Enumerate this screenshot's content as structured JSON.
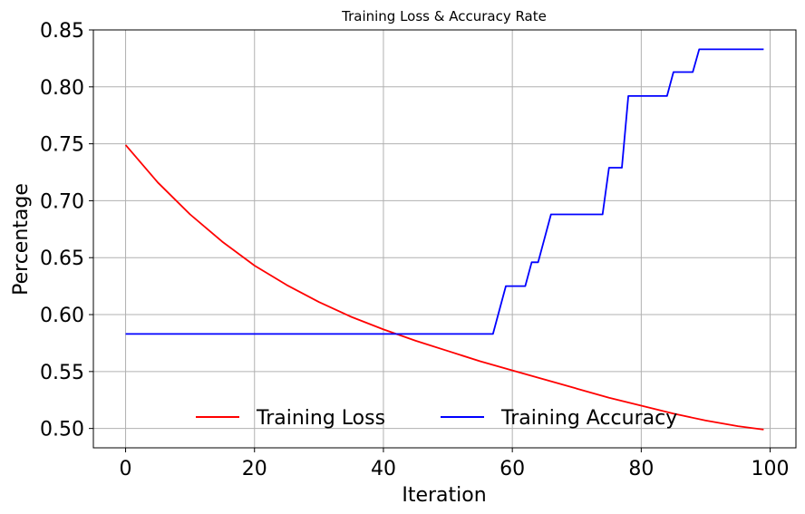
{
  "chart_data": {
    "type": "line",
    "title": "Training Loss & Accuracy Rate",
    "xlabel": "Iteration",
    "ylabel": "Percentage",
    "xlim": [
      -5,
      104
    ],
    "ylim": [
      0.483,
      0.85
    ],
    "xticks": [
      0,
      20,
      40,
      60,
      80,
      100
    ],
    "yticks": [
      0.5,
      0.55,
      0.6,
      0.65,
      0.7,
      0.75,
      0.8,
      0.85
    ],
    "grid": true,
    "legend": {
      "placement": "lower-center",
      "columns": 2
    },
    "series": [
      {
        "name": "Training Loss",
        "color": "#ff0000",
        "x": [
          0,
          5,
          10,
          15,
          20,
          25,
          30,
          35,
          40,
          45,
          50,
          55,
          60,
          65,
          70,
          75,
          80,
          85,
          90,
          95,
          99
        ],
        "y": [
          0.749,
          0.716,
          0.688,
          0.664,
          0.643,
          0.626,
          0.611,
          0.598,
          0.587,
          0.577,
          0.568,
          0.559,
          0.551,
          0.543,
          0.535,
          0.527,
          0.52,
          0.513,
          0.507,
          0.502,
          0.499
        ]
      },
      {
        "name": "Training Accuracy",
        "color": "#0000ff",
        "x": [
          0,
          57,
          59,
          62,
          63,
          64,
          66,
          74,
          75,
          77,
          78,
          84,
          85,
          88,
          89,
          99
        ],
        "y": [
          0.583,
          0.583,
          0.625,
          0.625,
          0.646,
          0.646,
          0.688,
          0.688,
          0.729,
          0.729,
          0.792,
          0.792,
          0.813,
          0.813,
          0.833,
          0.833
        ]
      }
    ]
  }
}
